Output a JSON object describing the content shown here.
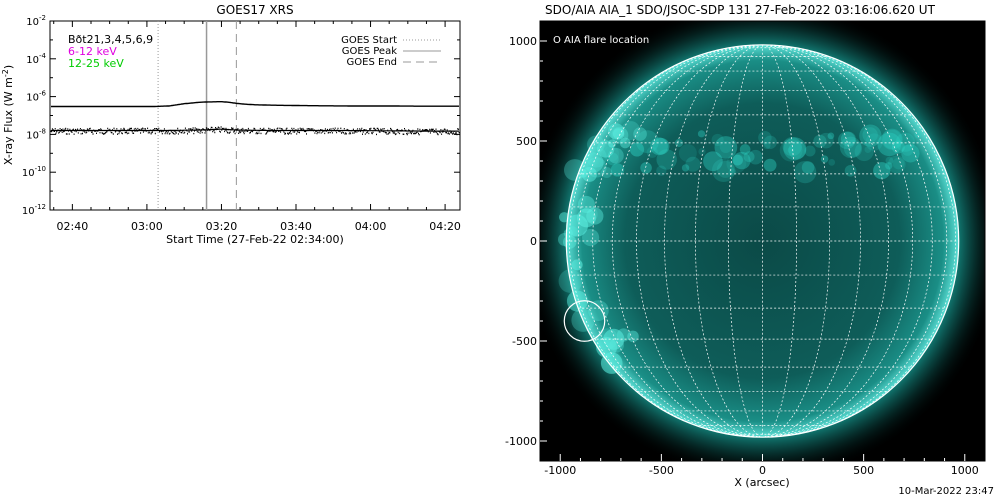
{
  "chart_data": [
    {
      "type": "line",
      "title": "GOES17 XRS",
      "xlabel": "Start Time (27-Feb-22 02:34:00)",
      "ylabel": "X-ray Flux (W m^-2)",
      "ylabel_parts": {
        "main": "X-ray Flux (W m",
        "sup": "-2",
        "close": ")"
      },
      "y_scale": "log",
      "ylim": [
        1e-12,
        0.01
      ],
      "xlim_minutes": [
        0,
        110
      ],
      "x_tick_labels": [
        "02:40",
        "03:00",
        "03:20",
        "03:40",
        "04:00",
        "04:20"
      ],
      "x_tick_minutes": [
        6,
        26,
        46,
        66,
        86,
        106
      ],
      "y_ticks": [
        {
          "base": "10",
          "exp": "-2"
        },
        {
          "base": "10",
          "exp": "-4"
        },
        {
          "base": "10",
          "exp": "-6"
        },
        {
          "base": "10",
          "exp": "-8"
        },
        {
          "base": "10",
          "exp": "-10"
        },
        {
          "base": "10",
          "exp": "-12"
        }
      ],
      "detector_label": "Bðt21,3,4,5,6,9",
      "series": [
        {
          "name": "6-12 keV",
          "color": "#e000e0",
          "x_minutes": [
            0,
            20,
            28,
            32,
            36,
            40,
            42,
            44,
            46,
            48,
            50,
            52,
            55,
            60,
            70,
            80,
            90,
            100,
            110
          ],
          "values": [
            3e-07,
            3e-07,
            3e-07,
            3.2e-07,
            4.2e-07,
            5e-07,
            5.2e-07,
            5.3e-07,
            5.4e-07,
            5e-07,
            4.4e-07,
            4e-07,
            3.7e-07,
            3.5e-07,
            3.3e-07,
            3.2e-07,
            3.2e-07,
            3.1e-07,
            3.1e-07
          ]
        },
        {
          "name": "12-25 keV",
          "color": "#00cc00",
          "x_minutes": [
            0,
            20,
            30,
            40,
            46,
            50,
            60,
            80,
            100,
            110
          ],
          "values": [
            1.6e-08,
            1.6e-08,
            1.6e-08,
            1.7e-08,
            1.9e-08,
            1.7e-08,
            1.6e-08,
            1.6e-08,
            1.5e-08,
            1.5e-08
          ]
        }
      ],
      "markers": [
        {
          "name": "GOES Start",
          "minute": 29,
          "style": "dotted",
          "color": "#999999"
        },
        {
          "name": "GOES Peak",
          "minute": 42,
          "style": "solid",
          "color": "#999999"
        },
        {
          "name": "GOES End",
          "minute": 50,
          "style": "dashed",
          "color": "#999999"
        }
      ],
      "legend_placement": "top-right"
    },
    {
      "type": "heatmap",
      "title": "SDO/AIA AIA_1 SDO/JSOC-SDP 131 27-Feb-2022 03:16:06.620 UT",
      "xlabel": "X (arcsec)",
      "ylabel": "",
      "xlim": [
        -1100,
        1100
      ],
      "ylim": [
        -1100,
        1100
      ],
      "x_ticks": [
        -1000,
        -500,
        0,
        500,
        1000
      ],
      "y_ticks": [
        1000,
        500,
        0,
        -500,
        -1000
      ],
      "solar_radius_arcsec": 970,
      "grid_spacing_deg": 10,
      "colormap_color": "#1fb9ae",
      "legend": "O AIA flare location",
      "legend_placement": "top-left",
      "flare_location": {
        "x": -880,
        "y": -400,
        "radius": 100
      }
    }
  ],
  "footer_timestamp": "10-Mar-2022 23:47"
}
